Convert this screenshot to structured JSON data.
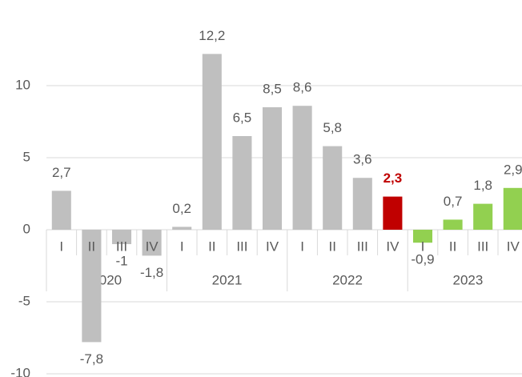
{
  "chart_data": {
    "type": "bar",
    "categories": [
      "I",
      "II",
      "III",
      "IV",
      "I",
      "II",
      "III",
      "IV",
      "I",
      "II",
      "III",
      "IV",
      "I",
      "II",
      "III",
      "IV"
    ],
    "groups": [
      "2020",
      "2021",
      "2022",
      "2023"
    ],
    "values": [
      2.7,
      -7.8,
      -1,
      -1.8,
      0.2,
      12.2,
      6.5,
      8.5,
      8.6,
      5.8,
      3.6,
      2.3,
      -0.9,
      0.7,
      1.8,
      2.9
    ],
    "value_labels": [
      "2,7",
      "-7,8",
      "-1",
      "-1,8",
      "0,2",
      "12,2",
      "6,5",
      "8,5",
      "8,6",
      "5,8",
      "3,6",
      "2,3",
      "-0,9",
      "0,7",
      "1,8",
      "2,9"
    ],
    "colors": [
      "#bfbfbf",
      "#bfbfbf",
      "#bfbfbf",
      "#bfbfbf",
      "#bfbfbf",
      "#bfbfbf",
      "#bfbfbf",
      "#bfbfbf",
      "#bfbfbf",
      "#bfbfbf",
      "#bfbfbf",
      "#c00000",
      "#92d050",
      "#92d050",
      "#92d050",
      "#92d050"
    ],
    "highlight": 11,
    "ylim": [
      -10,
      15
    ],
    "yticks": [
      -10,
      -5,
      0,
      5,
      10
    ],
    "grid": true
  }
}
